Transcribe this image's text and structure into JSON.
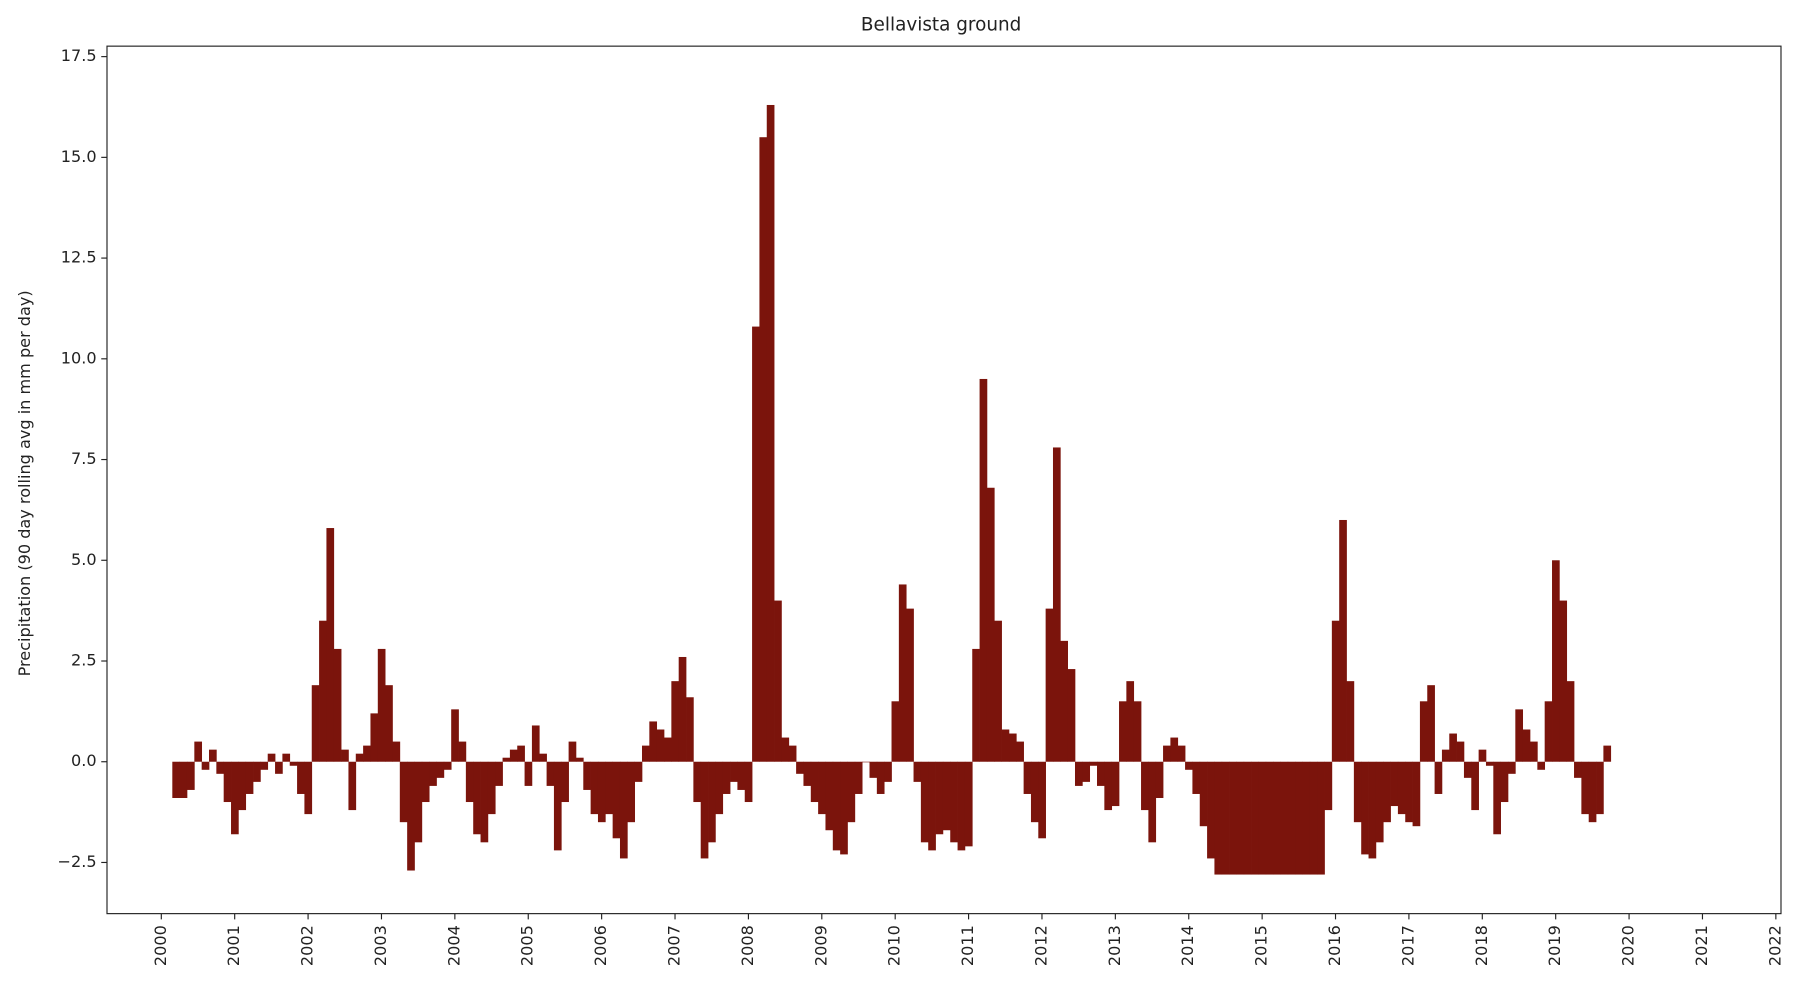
{
  "chart_data": {
    "type": "bar",
    "title": "Bellavista ground",
    "y_label": "Precipitation (90 day rolling avg in mm per day)",
    "color": "#7b140c",
    "xlim": [
      1999.26,
      2022.07
    ],
    "xticks": [
      2000,
      2001,
      2002,
      2003,
      2004,
      2005,
      2006,
      2007,
      2008,
      2009,
      2010,
      2011,
      2012,
      2013,
      2014,
      2015,
      2016,
      2017,
      2018,
      2019,
      2020,
      2021,
      2022
    ],
    "ylim": [
      -3.77,
      17.76
    ],
    "yticks": [
      {
        "value": -2.5,
        "label": "−2.5"
      },
      {
        "value": 0,
        "label": "0.0"
      },
      2.5,
      {
        "value": 5,
        "label": "5.0"
      },
      7.5,
      {
        "value": 10,
        "label": "10.0"
      },
      12.5,
      {
        "value": 15,
        "label": "15.0"
      },
      17.5
    ],
    "x": [
      2000.2,
      2000.3,
      2000.4,
      2000.5,
      2000.6,
      2000.7,
      2000.8,
      2000.9,
      2001.0,
      2001.1,
      2001.2,
      2001.3,
      2001.4,
      2001.5,
      2001.6,
      2001.7,
      2001.8,
      2001.9,
      2002.0,
      2002.1,
      2002.2,
      2002.3,
      2002.4,
      2002.5,
      2002.6,
      2002.7,
      2002.8,
      2002.9,
      2003.0,
      2003.1,
      2003.2,
      2003.3,
      2003.4,
      2003.5,
      2003.6,
      2003.7,
      2003.8,
      2003.9,
      2004.0,
      2004.1,
      2004.2,
      2004.3,
      2004.4,
      2004.5,
      2004.6,
      2004.7,
      2004.8,
      2004.9,
      2005.0,
      2005.1,
      2005.2,
      2005.3,
      2005.4,
      2005.5,
      2005.6,
      2005.7,
      2005.8,
      2005.9,
      2006.0,
      2006.1,
      2006.2,
      2006.3,
      2006.4,
      2006.5,
      2006.6,
      2006.7,
      2006.8,
      2006.9,
      2007.0,
      2007.1,
      2007.2,
      2007.3,
      2007.4,
      2007.5,
      2007.6,
      2007.7,
      2007.8,
      2007.9,
      2008.0,
      2008.1,
      2008.2,
      2008.3,
      2008.4,
      2008.5,
      2008.6,
      2008.7,
      2008.8,
      2008.9,
      2009.0,
      2009.1,
      2009.2,
      2009.3,
      2009.4,
      2009.5,
      2009.6,
      2009.7,
      2009.8,
      2009.9,
      2010.0,
      2010.1,
      2010.2,
      2010.3,
      2010.4,
      2010.5,
      2010.6,
      2010.7,
      2010.8,
      2010.9,
      2011.0,
      2011.1,
      2011.2,
      2011.3,
      2011.4,
      2011.5,
      2011.6,
      2011.7,
      2011.8,
      2011.9,
      2012.0,
      2012.1,
      2012.2,
      2012.3,
      2012.4,
      2012.5,
      2012.6,
      2012.7,
      2012.8,
      2012.9,
      2013.0,
      2013.1,
      2013.2,
      2013.3,
      2013.4,
      2013.5,
      2013.6,
      2013.7,
      2013.8,
      2013.9,
      2014.0,
      2014.1,
      2014.2,
      2014.3,
      2014.4,
      2014.5,
      2014.6,
      2014.7,
      2014.8,
      2014.9,
      2015.0,
      2015.1,
      2015.2,
      2015.3,
      2015.4,
      2015.5,
      2015.6,
      2015.7,
      2015.8,
      2015.9,
      2016.0,
      2016.1,
      2016.2,
      2016.3,
      2016.4,
      2016.5,
      2016.6,
      2016.7,
      2016.8,
      2016.9,
      2017.0,
      2017.1,
      2017.2,
      2017.3,
      2017.4,
      2017.5,
      2017.6,
      2017.7,
      2017.8,
      2017.9,
      2018.0,
      2018.1,
      2018.2,
      2018.3,
      2018.4,
      2018.5,
      2018.6,
      2018.7,
      2018.8,
      2018.9,
      2019.0,
      2019.1,
      2019.2,
      2019.3,
      2019.4,
      2019.5,
      2019.6,
      2019.7
    ],
    "values": [
      -0.9,
      -0.9,
      -0.7,
      0.5,
      -0.2,
      0.3,
      -0.3,
      -1.0,
      -1.8,
      -1.2,
      -0.8,
      -0.5,
      -0.2,
      0.2,
      -0.3,
      0.2,
      -0.1,
      -0.8,
      -1.3,
      1.9,
      3.5,
      5.8,
      2.8,
      0.3,
      -1.2,
      0.2,
      0.4,
      1.2,
      2.8,
      1.9,
      0.5,
      -1.5,
      -2.7,
      -2.0,
      -1.0,
      -0.6,
      -0.4,
      -0.2,
      1.3,
      0.5,
      -1.0,
      -1.8,
      -2.0,
      -1.3,
      -0.6,
      0.1,
      0.3,
      0.4,
      -0.6,
      0.9,
      0.2,
      -0.6,
      -2.2,
      -1.0,
      0.5,
      0.1,
      -0.7,
      -1.3,
      -1.5,
      -1.3,
      -1.9,
      -2.4,
      -1.5,
      -0.5,
      0.4,
      1.0,
      0.8,
      0.6,
      2.0,
      2.6,
      1.6,
      -1.0,
      -2.4,
      -2.0,
      -1.3,
      -0.8,
      -0.5,
      -0.7,
      -1.0,
      10.8,
      15.5,
      16.3,
      4.0,
      0.6,
      0.4,
      -0.3,
      -0.6,
      -1.0,
      -1.3,
      -1.7,
      -2.2,
      -2.3,
      -1.5,
      -0.8,
      0.0,
      -0.4,
      -0.8,
      -0.5,
      1.5,
      4.4,
      3.8,
      -0.5,
      -2.0,
      -2.2,
      -1.8,
      -1.7,
      -2.0,
      -2.2,
      -2.1,
      2.8,
      9.5,
      6.8,
      3.5,
      0.8,
      0.7,
      0.5,
      -0.8,
      -1.5,
      -1.9,
      3.8,
      7.8,
      3.0,
      2.3,
      -0.6,
      -0.5,
      -0.1,
      -0.6,
      -1.2,
      -1.1,
      1.5,
      2.0,
      1.5,
      -1.2,
      -2.0,
      -0.9,
      0.4,
      0.6,
      0.4,
      -0.2,
      -0.8,
      -1.6,
      -2.4,
      -2.8,
      -2.8,
      -2.8,
      -2.8,
      -2.8,
      -2.8,
      -2.8,
      -2.8,
      -2.8,
      -2.8,
      -2.8,
      -2.8,
      -2.8,
      -2.8,
      -2.8,
      -1.2,
      3.5,
      6.0,
      2.0,
      -1.5,
      -2.3,
      -2.4,
      -2.0,
      -1.5,
      -1.1,
      -1.3,
      -1.5,
      -1.6,
      1.5,
      1.9,
      -0.8,
      0.3,
      0.7,
      0.5,
      -0.4,
      -1.2,
      0.3,
      -0.1,
      -1.8,
      -1.0,
      -0.3,
      1.3,
      0.8,
      0.5,
      -0.2,
      1.5,
      5.0,
      4.0,
      2.0,
      -0.4,
      -1.3,
      -1.5,
      -1.3,
      0.4
    ]
  }
}
